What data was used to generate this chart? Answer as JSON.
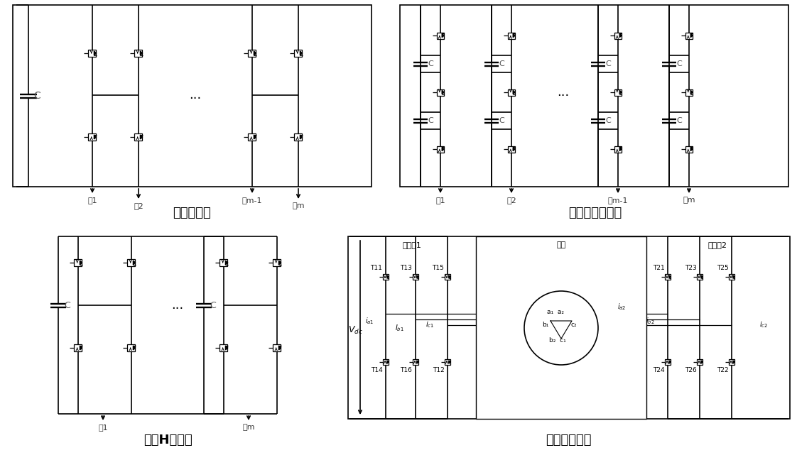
{
  "title_top_left": "多相桥驱动",
  "title_top_right": "多相多电平驱动",
  "title_bot_left": "多相H桥驱动",
  "title_bot_right": "多逆变器驱动",
  "phase1": "相1",
  "phase2": "相2",
  "phasem1": "相m-1",
  "phasem": "相m",
  "inv1": "逆变剸1",
  "motor": "电机",
  "inv2": "逆变剸2",
  "bg_color": "#ffffff",
  "lw": 1.2,
  "fig_width": 11.22,
  "fig_height": 6.48
}
